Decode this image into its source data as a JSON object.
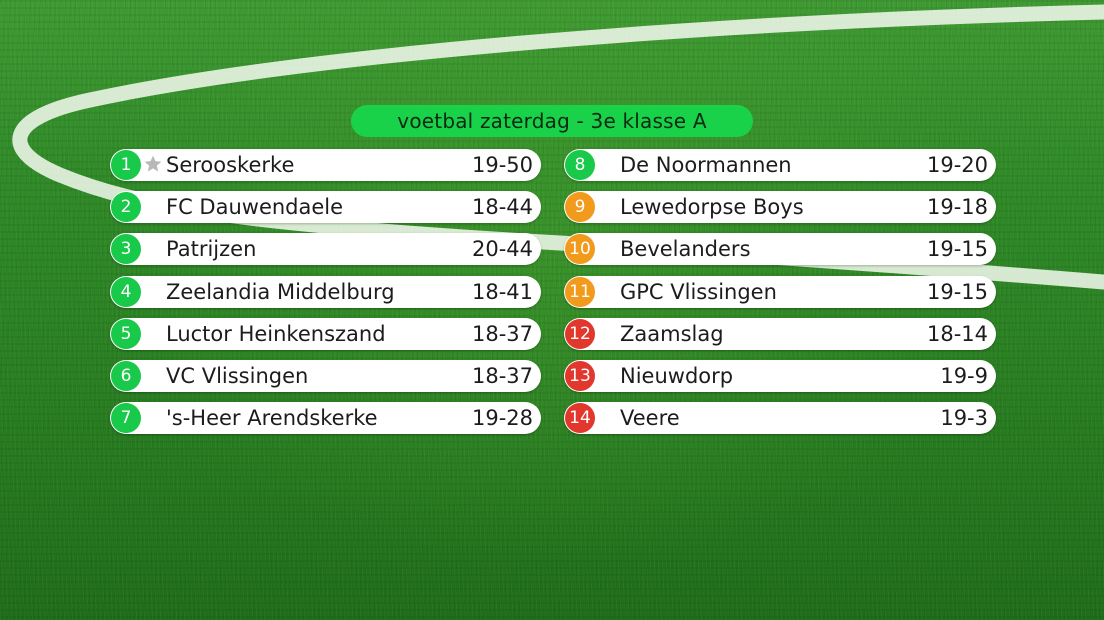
{
  "title": "voetbal zaterdag - 3e klasse A",
  "colors": {
    "green": "#19c94a",
    "orange": "#f29a1c",
    "red": "#e2372d"
  },
  "standings": [
    {
      "pos": "1",
      "team": "Serooskerke",
      "score": "19-50",
      "zone": "green",
      "champion": true
    },
    {
      "pos": "2",
      "team": "FC Dauwendaele",
      "score": "18-44",
      "zone": "green"
    },
    {
      "pos": "3",
      "team": "Patrijzen",
      "score": "20-44",
      "zone": "green"
    },
    {
      "pos": "4",
      "team": "Zeelandia Middelburg",
      "score": "18-41",
      "zone": "green"
    },
    {
      "pos": "5",
      "team": "Luctor Heinkenszand",
      "score": "18-37",
      "zone": "green"
    },
    {
      "pos": "6",
      "team": "VC Vlissingen",
      "score": "18-37",
      "zone": "green"
    },
    {
      "pos": "7",
      "team": "'s-Heer Arendskerke",
      "score": "19-28",
      "zone": "green"
    },
    {
      "pos": "8",
      "team": "De Noormannen",
      "score": "19-20",
      "zone": "green"
    },
    {
      "pos": "9",
      "team": "Lewedorpse Boys",
      "score": "19-18",
      "zone": "orange"
    },
    {
      "pos": "10",
      "team": "Bevelanders",
      "score": "19-15",
      "zone": "orange"
    },
    {
      "pos": "11",
      "team": "GPC Vlissingen",
      "score": "19-15",
      "zone": "orange"
    },
    {
      "pos": "12",
      "team": "Zaamslag",
      "score": "18-14",
      "zone": "red"
    },
    {
      "pos": "13",
      "team": "Nieuwdorp",
      "score": "19-9",
      "zone": "red"
    },
    {
      "pos": "14",
      "team": "Veere",
      "score": "19-3",
      "zone": "red"
    }
  ],
  "champion_icon": "star-icon"
}
